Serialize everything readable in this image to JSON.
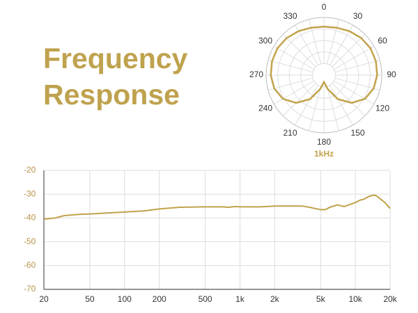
{
  "title": "Frequency Response",
  "chart_data": [
    {
      "type": "polar",
      "title": "1kHz",
      "color": "#c1a24a",
      "thetaticks": [
        0,
        30,
        60,
        90,
        120,
        150,
        180,
        210,
        240,
        270,
        300,
        330
      ],
      "rlim": [
        0,
        1
      ],
      "theta": [
        0,
        15,
        30,
        45,
        60,
        75,
        90,
        105,
        120,
        135,
        150,
        165,
        180,
        195,
        210,
        225,
        240,
        255,
        270,
        285,
        300,
        315,
        330,
        345
      ],
      "values": [
        0.84,
        0.85,
        0.88,
        0.91,
        0.93,
        0.93,
        0.92,
        0.89,
        0.82,
        0.68,
        0.48,
        0.25,
        0.12,
        0.25,
        0.48,
        0.68,
        0.82,
        0.89,
        0.92,
        0.93,
        0.93,
        0.91,
        0.88,
        0.85
      ]
    },
    {
      "type": "line",
      "color": "#c1a24a",
      "xscale": "log",
      "grid": true,
      "xlim": [
        20,
        20000
      ],
      "ylim": [
        -70,
        -20
      ],
      "xticks": [
        20,
        50,
        100,
        200,
        500,
        {
          "value": 1000,
          "label": "1k"
        },
        {
          "value": 2000,
          "label": "2k"
        },
        {
          "value": 5000,
          "label": "5k"
        },
        {
          "value": 10000,
          "label": "10k"
        },
        {
          "value": 20000,
          "label": "20k"
        }
      ],
      "yticks": [
        -20,
        -30,
        -40,
        -50,
        -60,
        -70
      ],
      "x": [
        20,
        25,
        30,
        40,
        50,
        70,
        100,
        150,
        200,
        300,
        500,
        700,
        800,
        900,
        1000,
        1500,
        2000,
        3000,
        3500,
        4000,
        5000,
        5500,
        6000,
        7000,
        8000,
        10000,
        11000,
        12000,
        13000,
        14000,
        15000,
        16000,
        18000,
        20000
      ],
      "values": [
        -40.5,
        -40,
        -39,
        -38.5,
        -38.3,
        -37.9,
        -37.5,
        -37,
        -36.2,
        -35.5,
        -35.3,
        -35.3,
        -35.5,
        -35.2,
        -35.3,
        -35.3,
        -35,
        -35,
        -35,
        -35.5,
        -36.5,
        -36.5,
        -35.5,
        -34.5,
        -35.2,
        -33.5,
        -32.5,
        -32,
        -31,
        -30.5,
        -30.5,
        -31.5,
        -33.5,
        -36
      ]
    }
  ]
}
